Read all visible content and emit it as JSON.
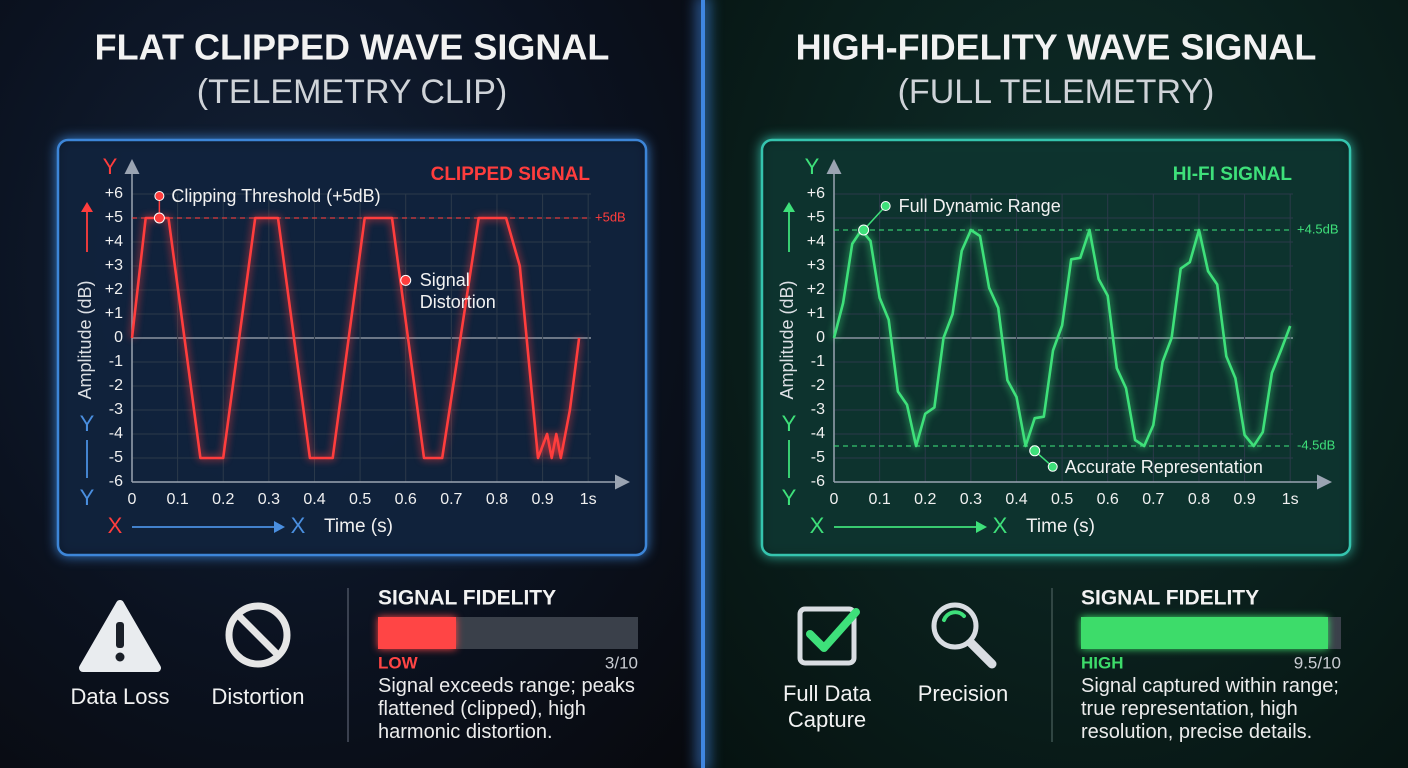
{
  "chart_data": [
    {
      "type": "line",
      "title": "FLAT CLIPPED WAVE SIGNAL",
      "subtitle": "(TELEMETRY CLIP)",
      "x_label": "Time (s)",
      "y_label": "Amplitude (dB)",
      "x_letter": "X",
      "y_letter": "Y",
      "x": [
        0,
        0.03,
        0.08,
        0.15,
        0.2,
        0.27,
        0.32,
        0.39,
        0.44,
        0.51,
        0.57,
        0.64,
        0.68,
        0.76,
        0.82,
        0.85,
        0.89,
        0.91,
        0.92,
        0.93,
        0.94,
        0.96,
        0.98
      ],
      "series": [
        {
          "name": "CLIPPED SIGNAL",
          "color": "#ff3d3d",
          "values": [
            0,
            5,
            5,
            -5,
            -5,
            5,
            5,
            -5,
            -5,
            5,
            5,
            -5,
            -5,
            5,
            5,
            3,
            -5,
            -4,
            -5,
            -4,
            -5,
            -3,
            0
          ]
        }
      ],
      "xlim": [
        0,
        1.05
      ],
      "ylim": [
        -6,
        6
      ],
      "xticks": [
        0,
        0.1,
        0.2,
        0.3,
        0.4,
        0.5,
        0.6,
        0.7,
        0.8,
        0.9,
        {
          "value": 1,
          "label": "1s"
        }
      ],
      "yticks": [
        {
          "value": 6,
          "label": "+6"
        },
        {
          "value": 5,
          "label": "+5"
        },
        {
          "value": 4,
          "label": "+4"
        },
        {
          "value": 3,
          "label": "+3"
        },
        {
          "value": 2,
          "label": "+2"
        },
        {
          "value": 1,
          "label": "+1"
        },
        0,
        -1,
        -2,
        -3,
        -4,
        -5,
        -6
      ],
      "grid": true,
      "thresholds": [
        {
          "value": 5,
          "label": "+5dB"
        }
      ],
      "annotations": [
        {
          "text": "Clipping Threshold (+5dB)",
          "x": 0.06,
          "y": 5
        },
        {
          "text": "Signal Distortion",
          "x": 0.6,
          "y": 2.4
        }
      ]
    },
    {
      "type": "line",
      "title": "HIGH-FIDELITY WAVE SIGNAL",
      "subtitle": "(FULL TELEMETRY)",
      "x_label": "Time (s)",
      "y_label": "Amplitude (dB)",
      "x_letter": "X",
      "y_letter": "Y",
      "x": [
        0,
        0.02,
        0.04,
        0.06,
        0.08,
        0.1,
        0.12,
        0.14,
        0.16,
        0.18,
        0.2,
        0.22,
        0.24,
        0.26,
        0.28,
        0.3,
        0.32,
        0.34,
        0.36,
        0.38,
        0.4,
        0.42,
        0.44,
        0.46,
        0.48,
        0.5,
        0.52,
        0.54,
        0.56,
        0.58,
        0.6,
        0.62,
        0.64,
        0.66,
        0.68,
        0.7,
        0.72,
        0.74,
        0.76,
        0.78,
        0.8,
        0.82,
        0.84,
        0.86,
        0.88,
        0.9,
        0.92,
        0.94,
        0.96,
        0.98,
        1
      ],
      "series": [
        {
          "name": "HI-FI SIGNAL",
          "color": "#3ee07a",
          "values": [
            0,
            1.46,
            3.92,
            4.5,
            4.04,
            1.68,
            0.76,
            -2.23,
            -2.78,
            -4.5,
            -3.16,
            -2.89,
            0,
            1.0,
            3.63,
            4.5,
            4.25,
            2.09,
            1.26,
            -1.76,
            -2.46,
            -4.5,
            -3.34,
            -3.28,
            -0.52,
            0.52,
            3.28,
            3.34,
            4.5,
            2.46,
            1.76,
            -1.26,
            -2.09,
            -4.25,
            -4.5,
            -3.63,
            -1.0,
            0,
            2.89,
            3.16,
            4.5,
            2.78,
            2.23,
            -0.76,
            -1.68,
            -4.04,
            -4.5,
            -3.92,
            -1.46,
            -0.5,
            0.5
          ]
        }
      ],
      "xlim": [
        0,
        1.05
      ],
      "ylim": [
        -6,
        6
      ],
      "xticks": [
        0,
        0.1,
        0.2,
        0.3,
        0.4,
        0.5,
        0.6,
        0.7,
        0.8,
        0.9,
        {
          "value": 1,
          "label": "1s"
        }
      ],
      "yticks": [
        {
          "value": 6,
          "label": "+6"
        },
        {
          "value": 5,
          "label": "+5"
        },
        {
          "value": 4,
          "label": "+4"
        },
        {
          "value": 3,
          "label": "+3"
        },
        {
          "value": 2,
          "label": "+2"
        },
        {
          "value": 1,
          "label": "+1"
        },
        0,
        -1,
        -2,
        -3,
        -4,
        -5,
        -6
      ],
      "grid": true,
      "thresholds": [
        {
          "value": 4.5,
          "label": "+4.5dB"
        },
        {
          "value": -4.5,
          "label": "-4.5dB"
        }
      ],
      "annotations": [
        {
          "text": "Full Dynamic Range",
          "x": 0.065,
          "y": 4.5
        },
        {
          "text": "Accurate Representation",
          "x": 0.44,
          "y": -4.7
        }
      ]
    }
  ],
  "panels": [
    {
      "features": [
        "Data Loss",
        "Distortion"
      ],
      "fidelity": {
        "title": "SIGNAL FIDELITY",
        "level": "LOW",
        "value": 3,
        "value_label": "3/10",
        "xlim": [
          0,
          10
        ],
        "color": "#ff4545",
        "description": "Signal exceeds range; peaks flattened (clipped), high harmonic distortion."
      }
    },
    {
      "features": [
        "Full Data Capture",
        "Precision"
      ],
      "fidelity": {
        "title": "SIGNAL FIDELITY",
        "level": "HIGH",
        "value": 9.5,
        "value_label": "9.5/10",
        "xlim": [
          0,
          10
        ],
        "color": "#3ddc6a",
        "description": "Signal captured within range; true representation, high resolution, precise details."
      }
    }
  ]
}
